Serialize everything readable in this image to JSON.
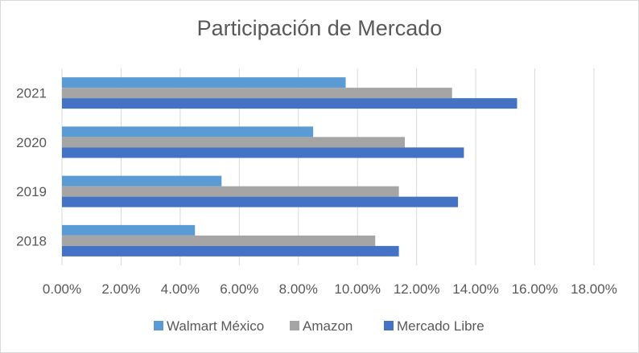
{
  "chart_data": {
    "type": "bar",
    "orientation": "horizontal",
    "title": "Participación de Mercado",
    "xlabel": "",
    "ylabel": "",
    "categories": [
      "2018",
      "2019",
      "2020",
      "2021"
    ],
    "xlim": [
      0,
      0.18
    ],
    "x_ticks": [
      0,
      0.02,
      0.04,
      0.06,
      0.08,
      0.1,
      0.12,
      0.14,
      0.16,
      0.18
    ],
    "x_tick_labels": [
      "0.00%",
      "2.00%",
      "4.00%",
      "6.00%",
      "8.00%",
      "10.00%",
      "12.00%",
      "14.00%",
      "16.00%",
      "18.00%"
    ],
    "grid": "vertical",
    "legend_position": "bottom",
    "series": [
      {
        "name": "Walmart México",
        "color": "#5b9bd5",
        "values": [
          0.045,
          0.054,
          0.085,
          0.096
        ]
      },
      {
        "name": "Amazon",
        "color": "#a5a5a5",
        "values": [
          0.106,
          0.114,
          0.116,
          0.132
        ]
      },
      {
        "name": "Mercado Libre",
        "color": "#4472c4",
        "values": [
          0.114,
          0.134,
          0.136,
          0.154
        ]
      }
    ]
  }
}
